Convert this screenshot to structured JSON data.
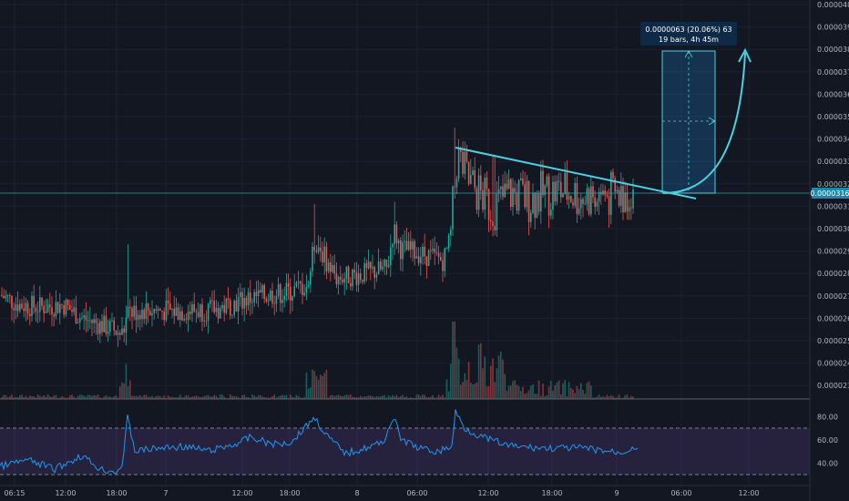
{
  "chart_data": {
    "type": "candlestick",
    "price_axis": {
      "ticks": [
        "0.0000400",
        "0.0000390",
        "0.0000380",
        "0.0000370",
        "0.0000360",
        "0.0000350",
        "0.0000340",
        "0.0000330",
        "0.0000320",
        "0.0000310",
        "0.0000300",
        "0.0000290",
        "0.0000280",
        "0.0000270",
        "0.0000260",
        "0.0000250",
        "0.0000240",
        "0.0000230"
      ],
      "range": [
        2.26e-05,
        4.02e-05
      ],
      "current_price": "0.0000316"
    },
    "time_axis": {
      "ticks": [
        "06:15",
        "12:00",
        "18:00",
        "7",
        "12:00",
        "18:00",
        "8",
        "06:00",
        "12:00",
        "18:00",
        "9",
        "06:00",
        "12:00"
      ]
    },
    "rsi": {
      "ticks": [
        "80.00",
        "60.00",
        "40.00"
      ],
      "upper_band": 70,
      "lower_band": 30
    },
    "measure_label": {
      "line1": "0.0000063 (20.06%) 63",
      "line2": "19 bars, 4h 45m"
    },
    "colors": {
      "background": "#131722",
      "up": "#26a69a",
      "down": "#ef5350",
      "trendline": "#4dd0e1",
      "rsi_line": "#2196f3"
    }
  }
}
